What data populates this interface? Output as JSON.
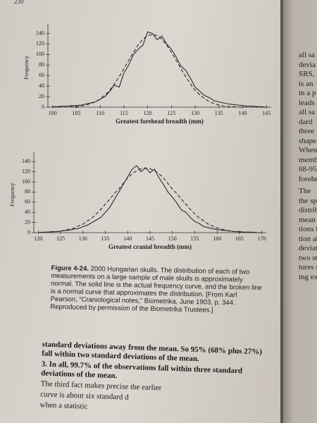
{
  "page_number": "230",
  "chart_data": [
    {
      "type": "line",
      "xlabel": "Greatest forehead breadth (mm)",
      "ylabel": "Frequency",
      "x": [
        100,
        101,
        102,
        103,
        104,
        105,
        106,
        107,
        108,
        109,
        110,
        111,
        112,
        113,
        114,
        115,
        116,
        117,
        118,
        119,
        120,
        121,
        122,
        123,
        124,
        125,
        126,
        127,
        128,
        129,
        130,
        131,
        132,
        133,
        134,
        135,
        136,
        137,
        138,
        139,
        140,
        141,
        142,
        143,
        144,
        145
      ],
      "series": [
        {
          "color": "#2a2a2a",
          "style": "solid",
          "values": [
            1,
            1,
            2,
            2,
            3,
            3,
            4,
            6,
            8,
            10,
            15,
            20,
            30,
            42,
            38,
            65,
            80,
            100,
            110,
            118,
            143,
            140,
            128,
            135,
            120,
            110,
            95,
            78,
            70,
            55,
            38,
            30,
            22,
            18,
            12,
            10,
            8,
            6,
            5,
            4,
            3,
            2,
            2,
            1,
            1,
            0
          ]
        },
        {
          "color": "#2a2a2a",
          "style": "dashed",
          "values": [
            0,
            0,
            0,
            0,
            1,
            1,
            2,
            4,
            7,
            10,
            16,
            23,
            32,
            44,
            58,
            73,
            89,
            104,
            118,
            129,
            136,
            138,
            136,
            129,
            118,
            104,
            89,
            73,
            58,
            44,
            32,
            23,
            16,
            10,
            7,
            4,
            2,
            1,
            1,
            0,
            0,
            0,
            0,
            0,
            0,
            0
          ]
        }
      ],
      "xlim": [
        99,
        146
      ],
      "xticks": [
        100,
        105,
        110,
        115,
        120,
        125,
        130,
        135,
        140,
        145
      ],
      "ylim": [
        0,
        150
      ],
      "yticks": [
        0,
        20,
        40,
        60,
        80,
        100,
        120,
        140
      ]
    },
    {
      "type": "line",
      "xlabel": "Greatest cranial breadth (mm)",
      "ylabel": "Frequency",
      "x": [
        120,
        121,
        122,
        123,
        124,
        125,
        126,
        127,
        128,
        129,
        130,
        131,
        132,
        133,
        134,
        135,
        136,
        137,
        138,
        139,
        140,
        141,
        142,
        143,
        144,
        145,
        146,
        147,
        148,
        149,
        150,
        151,
        152,
        153,
        154,
        155,
        156,
        157,
        158,
        159,
        160,
        161,
        162,
        163,
        164,
        165,
        166,
        167,
        168,
        169,
        170
      ],
      "series": [
        {
          "color": "#2a2a2a",
          "style": "solid",
          "values": [
            0,
            1,
            1,
            2,
            2,
            3,
            4,
            5,
            7,
            8,
            12,
            15,
            20,
            25,
            30,
            40,
            50,
            65,
            80,
            95,
            110,
            125,
            132,
            120,
            128,
            118,
            125,
            108,
            95,
            80,
            70,
            58,
            45,
            40,
            30,
            22,
            18,
            12,
            10,
            8,
            6,
            5,
            4,
            3,
            2,
            2,
            1,
            1,
            1,
            0,
            0
          ]
        },
        {
          "color": "#2a2a2a",
          "style": "dashed",
          "values": [
            0,
            1,
            1,
            1,
            2,
            3,
            5,
            7,
            9,
            13,
            17,
            23,
            29,
            37,
            46,
            56,
            66,
            77,
            86,
            97,
            108,
            116,
            122,
            126,
            127,
            126,
            122,
            116,
            108,
            97,
            86,
            77,
            66,
            56,
            46,
            37,
            29,
            23,
            17,
            13,
            9,
            7,
            5,
            3,
            2,
            1,
            1,
            1,
            0,
            0,
            0
          ]
        }
      ],
      "xlim": [
        119,
        171
      ],
      "xticks": [
        120,
        125,
        130,
        135,
        140,
        145,
        150,
        155,
        160,
        165,
        170
      ],
      "ylim": [
        0,
        150
      ],
      "yticks": [
        0,
        20,
        40,
        60,
        80,
        100,
        120,
        140
      ]
    }
  ],
  "caption": {
    "label": "Figure 4-24.",
    "text": "2000 Hungarian skulls. The distribution of each of two measurements on a large sample of male skulls is approximately normal. The solid line is the actual frequency curve, and the broken line is a normal curve that approximates the distribution. [From Karl Pearson, “Craniological notes,” Biometrika, June 1903, p. 344. Reproduced by permission of the Biometrika Trustees.]"
  },
  "body": [
    "standard deviations away from the mean. So 95% (68% plus 27%) fall within two standard deviations of the mean.",
    "3. In all, 99.7% of the observations fall within three standard deviations of the mean.",
    "The third fact makes precise the earlier",
    "curve is about six standard d",
    "when a statistic"
  ],
  "right_page": [
    "all sa",
    "devia",
    "SRS,",
    "is an",
    "in a p",
    "leads",
    "all sa",
    "dard",
    "three",
    "shape",
    "When",
    "memb",
    "68-95-",
    "forehe",
    "The",
    "the sp",
    "distrib",
    "mean i",
    "tions f",
    "tion ab",
    "deviati",
    "two sta",
    "tures s",
    "ing exa"
  ]
}
